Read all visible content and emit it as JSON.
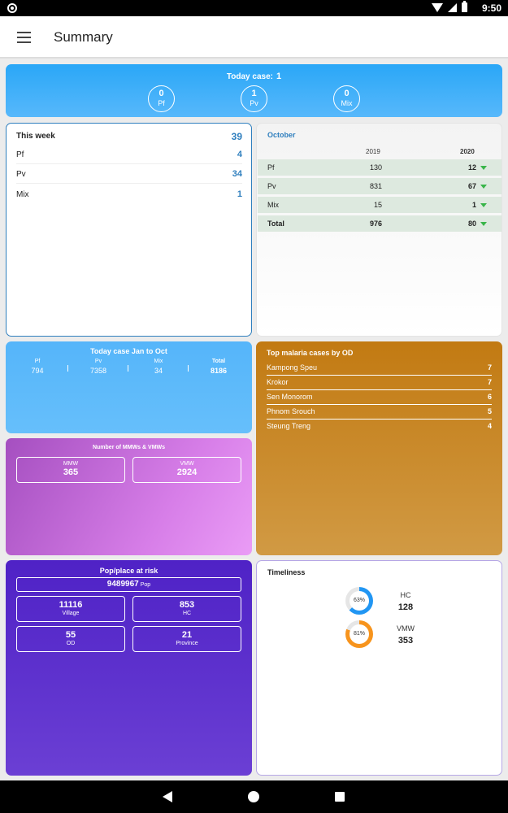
{
  "status_bar": {
    "time": "9:50"
  },
  "app_bar": {
    "title": "Summary"
  },
  "today_case": {
    "label": "Today case:",
    "value": "1",
    "items": [
      {
        "label": "Pf",
        "value": "0"
      },
      {
        "label": "Pv",
        "value": "1"
      },
      {
        "label": "Mix",
        "value": "0"
      }
    ]
  },
  "this_week": {
    "title": "This week",
    "total": "39",
    "rows": [
      {
        "label": "Pf",
        "value": "4"
      },
      {
        "label": "Pv",
        "value": "34"
      },
      {
        "label": "Mix",
        "value": "1"
      }
    ]
  },
  "october": {
    "title": "October",
    "year1": "2019",
    "year2": "2020",
    "rows": [
      {
        "label": "Pf",
        "v2019": "130",
        "v2020": "12",
        "trend": "down"
      },
      {
        "label": "Pv",
        "v2019": "831",
        "v2020": "67",
        "trend": "down"
      },
      {
        "label": "Mix",
        "v2019": "15",
        "v2020": "1",
        "trend": "down"
      },
      {
        "label": "Total",
        "v2019": "976",
        "v2020": "80",
        "trend": "down"
      }
    ],
    "trend_color": "#39b54a"
  },
  "jan_to_oct": {
    "title": "Today case Jan to Oct",
    "cols": [
      {
        "label": "Pf",
        "value": "794"
      },
      {
        "label": "Pv",
        "value": "7358"
      },
      {
        "label": "Mix",
        "value": "34"
      },
      {
        "label": "Total",
        "value": "8186"
      }
    ]
  },
  "top_od": {
    "title": "Top malaria cases by OD",
    "rows": [
      {
        "name": "Kampong Speu",
        "count": "7"
      },
      {
        "name": "Krokor",
        "count": "7"
      },
      {
        "name": "Sen Monorom",
        "count": "6"
      },
      {
        "name": "Phnom Srouch",
        "count": "5"
      },
      {
        "name": "Steung Treng",
        "count": "4"
      }
    ]
  },
  "mmw_vmw": {
    "title": "Number of MMWs & VMWs",
    "mmw": {
      "label": "MMW",
      "value": "365"
    },
    "vmw": {
      "label": "VMW",
      "value": "2924"
    }
  },
  "pop_at_risk": {
    "title": "Pop/place at risk",
    "pop": {
      "value": "9489967",
      "unit": "Pop"
    },
    "village": {
      "label": "Village",
      "value": "11116"
    },
    "hc": {
      "label": "HC",
      "value": "853"
    },
    "od": {
      "label": "OD",
      "value": "55"
    },
    "province": {
      "label": "Province",
      "value": "21"
    }
  },
  "timeliness": {
    "title": "Timeliness",
    "items": [
      {
        "label": "HC",
        "value": "128",
        "percent_text": "63%",
        "percent": 63,
        "color": "#2196f3"
      },
      {
        "label": "VMW",
        "value": "353",
        "percent_text": "81%",
        "percent": 81,
        "color": "#f7941d"
      }
    ]
  }
}
